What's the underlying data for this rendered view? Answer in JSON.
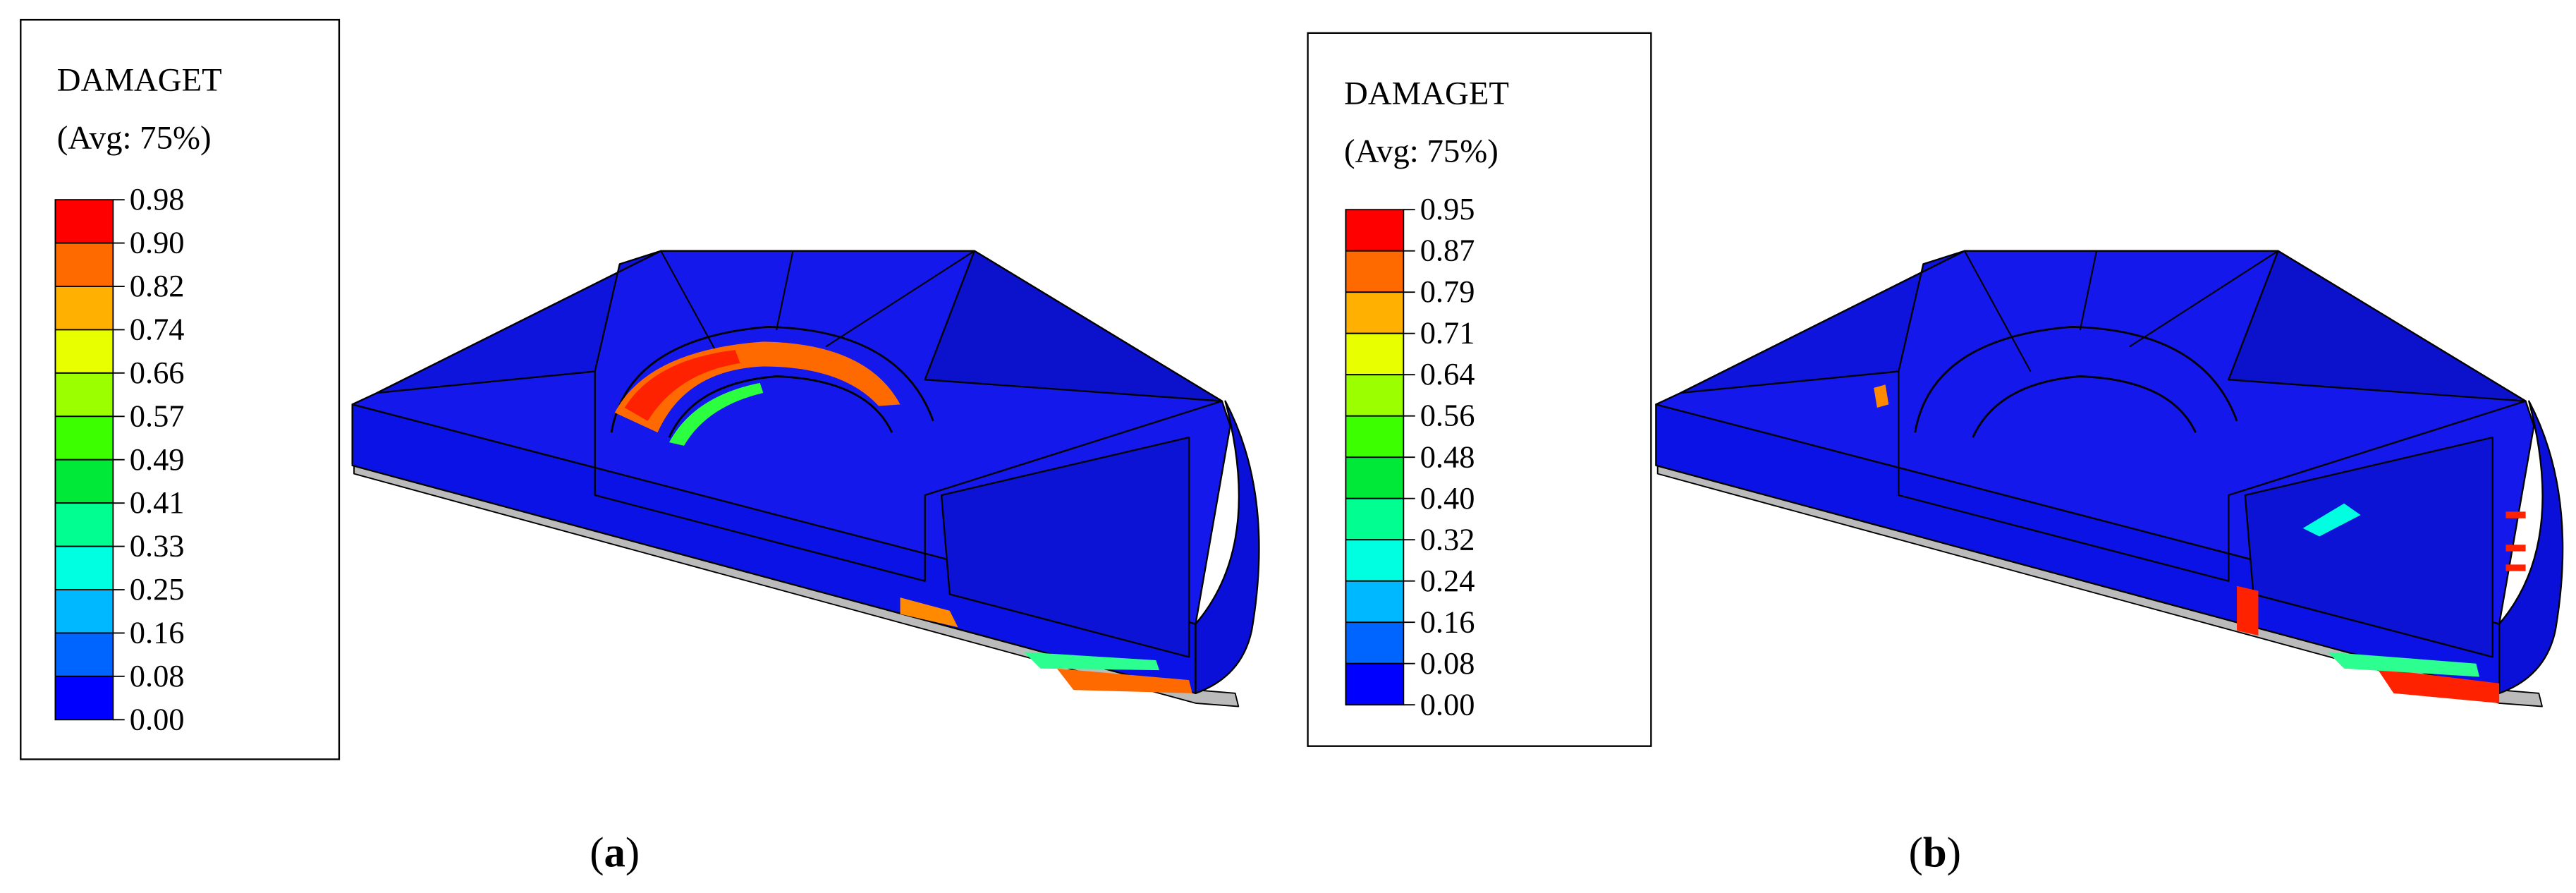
{
  "panels": [
    {
      "title": "DAMAGET",
      "subtitle": "(Avg: 75%)",
      "levels": [
        "0.98",
        "0.90",
        "0.82",
        "0.74",
        "0.66",
        "0.57",
        "0.49",
        "0.41",
        "0.33",
        "0.25",
        "0.16",
        "0.08",
        "0.00"
      ],
      "caption_letter": "a"
    },
    {
      "title": "DAMAGET",
      "subtitle": "(Avg: 75%)",
      "levels": [
        "0.95",
        "0.87",
        "0.79",
        "0.71",
        "0.64",
        "0.56",
        "0.48",
        "0.40",
        "0.32",
        "0.24",
        "0.16",
        "0.08",
        "0.00"
      ],
      "caption_letter": "b"
    }
  ]
}
